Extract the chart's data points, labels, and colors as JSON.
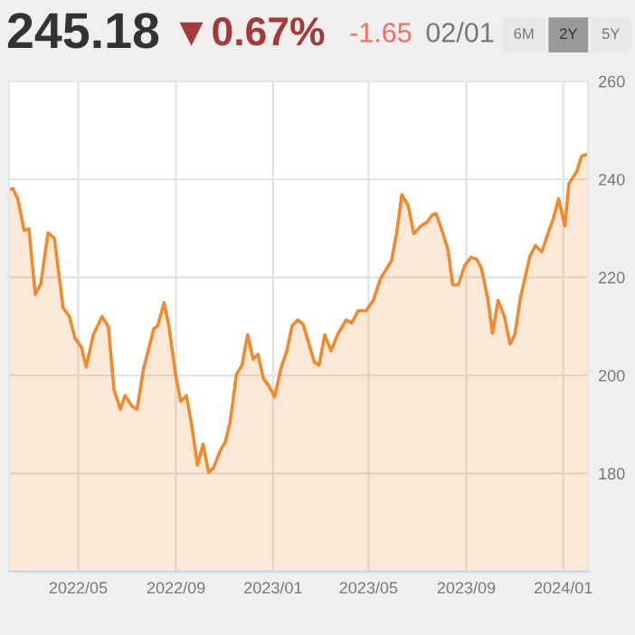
{
  "chart_data": {
    "type": "area",
    "annotations": [
      "245.18",
      "▼0.67%",
      "-1.65",
      "02/01",
      "6M",
      "2Y",
      "5Y"
    ],
    "series": [
      {
        "color": "#f08a30",
        "x": [
          "2022-02-03",
          "2022-02-08",
          "2022-02-14",
          "2022-02-22",
          "2022-02-28",
          "2022-03-08",
          "2022-03-15",
          "2022-03-24",
          "2022-04-01",
          "2022-04-12",
          "2022-04-20",
          "2022-04-27",
          "2022-05-05",
          "2022-05-11",
          "2022-05-20",
          "2022-05-31",
          "2022-06-08",
          "2022-06-15",
          "2022-06-23",
          "2022-06-29",
          "2022-07-07",
          "2022-07-14",
          "2022-07-22",
          "2022-08-04",
          "2022-08-09",
          "2022-08-17",
          "2022-08-23",
          "2022-09-01",
          "2022-09-07",
          "2022-09-14",
          "2022-09-20",
          "2022-09-28",
          "2022-10-05",
          "2022-10-12",
          "2022-10-18",
          "2022-10-27",
          "2022-11-02",
          "2022-11-08",
          "2022-11-16",
          "2022-11-23",
          "2022-11-30",
          "2022-12-07",
          "2022-12-13",
          "2022-12-20",
          "2022-12-27",
          "2023-01-03",
          "2023-01-11",
          "2023-01-18",
          "2023-01-25",
          "2023-02-01",
          "2023-02-08",
          "2023-02-14",
          "2023-02-22",
          "2023-02-28",
          "2023-03-07",
          "2023-03-15",
          "2023-03-23",
          "2023-04-03",
          "2023-04-10",
          "2023-04-18",
          "2023-04-28",
          "2023-05-07",
          "2023-05-16",
          "2023-05-30",
          "2023-06-06",
          "2023-06-12",
          "2023-06-20",
          "2023-06-27",
          "2023-07-06",
          "2023-07-14",
          "2023-07-20",
          "2023-07-25",
          "2023-08-02",
          "2023-08-09",
          "2023-08-15",
          "2023-08-22",
          "2023-08-30",
          "2023-09-07",
          "2023-09-14",
          "2023-09-20",
          "2023-09-28",
          "2023-10-04",
          "2023-10-11",
          "2023-10-19",
          "2023-10-26",
          "2023-11-01",
          "2023-11-08",
          "2023-11-20",
          "2023-11-27",
          "2023-12-05",
          "2023-12-12",
          "2023-12-20",
          "2023-12-26",
          "2024-01-03",
          "2024-01-08",
          "2024-01-18",
          "2024-01-24",
          "2024-02-01"
        ],
        "values": [
          237.9,
          238.1,
          236,
          229.6,
          229.9,
          216.5,
          218.7,
          229.1,
          228,
          213.8,
          212,
          207.6,
          205.8,
          201.7,
          208.3,
          212,
          209.9,
          197.1,
          193.1,
          195.9,
          193.8,
          193.1,
          201.2,
          209.5,
          210.1,
          214.8,
          210.1,
          199.6,
          194.7,
          195.9,
          190.6,
          181.7,
          186,
          180.2,
          181.1,
          184.8,
          186.4,
          190.4,
          200.2,
          202.1,
          208.3,
          203.3,
          204.3,
          199.3,
          197.8,
          195.6,
          201.5,
          204.8,
          210.1,
          211.3,
          210.4,
          207,
          202.7,
          202.1,
          208.3,
          205,
          208.3,
          211.3,
          210.7,
          213.2,
          213.2,
          215.3,
          219.7,
          223.4,
          229.6,
          236.9,
          234.6,
          228.9,
          230.5,
          231.3,
          232.7,
          233,
          229.3,
          225.6,
          218.5,
          218.5,
          222.4,
          224.1,
          223.7,
          221.9,
          215.7,
          208.6,
          215.3,
          212,
          206.4,
          208.3,
          215.7,
          224.3,
          226.5,
          225.2,
          228.6,
          232.3,
          236,
          230.5,
          239.1,
          241.6,
          244.7,
          245.2
        ]
      }
    ],
    "xlim": [
      "2022-02-03",
      "2024-02-01"
    ],
    "xticks": [
      {
        "value": "2022-05-01",
        "label": "2022/05"
      },
      {
        "value": "2022-09-01",
        "label": "2022/09"
      },
      {
        "value": "2023-01-01",
        "label": "2023/01"
      },
      {
        "value": "2023-05-01",
        "label": "2023/05"
      },
      {
        "value": "2023-09-01",
        "label": "2023/09"
      },
      {
        "value": "2024-01-01",
        "label": "2024/01"
      }
    ],
    "ylim": [
      160,
      260
    ],
    "yticks": [
      180,
      200,
      220,
      240,
      260
    ],
    "grid": true
  }
}
